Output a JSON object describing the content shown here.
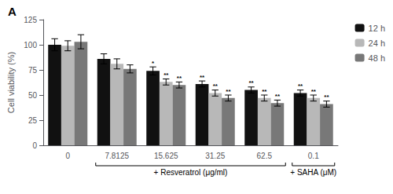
{
  "chart_data": {
    "type": "bar",
    "title": "A",
    "categories": [
      "0",
      "7.8125",
      "15.625",
      "31.25",
      "62.5",
      "0.1"
    ],
    "series": [
      {
        "name": "12 h",
        "color": "#111111",
        "values": [
          100,
          86,
          74,
          61,
          55,
          52
        ],
        "errors": [
          6,
          5,
          4,
          3,
          3,
          3
        ],
        "significance": [
          null,
          null,
          "*",
          "**",
          "**",
          "**"
        ]
      },
      {
        "name": "24 h",
        "color": "#b8b8b8",
        "values": [
          99,
          81,
          63,
          52,
          47,
          47
        ],
        "errors": [
          5,
          5,
          3,
          3,
          3,
          3
        ],
        "significance": [
          null,
          null,
          "**",
          "**",
          "**",
          "**"
        ]
      },
      {
        "name": "48 h",
        "color": "#787878",
        "values": [
          103,
          76,
          60,
          47,
          42,
          41
        ],
        "errors": [
          7,
          4,
          3,
          3,
          3,
          3
        ],
        "significance": [
          null,
          null,
          "**",
          "**",
          "**",
          "**"
        ]
      }
    ],
    "ylabel": "Cell viability (%)",
    "ylim": [
      0,
      125
    ],
    "yticks": [
      0,
      25,
      50,
      75,
      100,
      125
    ],
    "annotations": [
      {
        "text": "+ Resveratrol (μg/ml)",
        "categories": [
          "7.8125",
          "62.5"
        ]
      },
      {
        "text": "+ SAHA (μM)",
        "categories": [
          "0.1",
          "0.1"
        ]
      }
    ],
    "grid": false,
    "legend": "right"
  }
}
